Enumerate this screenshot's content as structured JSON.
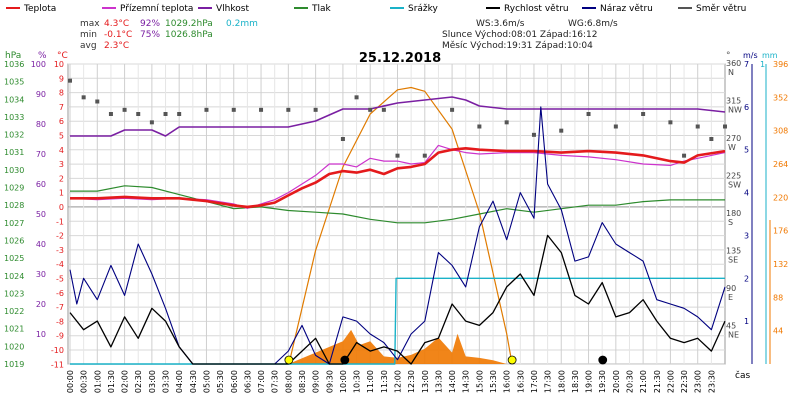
{
  "legend": [
    {
      "key": "temp",
      "label": "Teplota",
      "color": "#e41a1c"
    },
    {
      "key": "feels",
      "label": "Přízemní teplota",
      "color": "#cc33cc"
    },
    {
      "key": "hum",
      "label": "Vlhkost",
      "color": "#7a1fa2"
    },
    {
      "key": "press",
      "label": "Tlak",
      "color": "#2e8b2e"
    },
    {
      "key": "rain",
      "label": "Srážky",
      "color": "#1ab2c8"
    },
    {
      "key": "wind",
      "label": "Rychlost větru",
      "color": "#000000"
    },
    {
      "key": "gust",
      "label": "Náraz větru",
      "color": "#000080"
    },
    {
      "key": "dir",
      "label": "Směr větru",
      "color": "#555555"
    }
  ],
  "stats": {
    "max_label": "max",
    "max_temp": "4.3°C",
    "max_hum": "92%",
    "max_press": "1029.2hPa",
    "max_rain": "0.2mm",
    "min_label": "min",
    "min_temp": "-0.1°C",
    "min_hum": "75%",
    "min_press": "1026.8hPa",
    "avg_label": "avg",
    "avg_temp": "2.3°C",
    "ws": "WS:3.6m/s",
    "wg": "WG:6.8m/s",
    "sun": "Slunce Východ:08:01  Západ:16:12",
    "moon": "Měsíc  Východ:19:31  Západ:10:04"
  },
  "title": "25.12.2018",
  "colors": {
    "temp": "#e41a1c",
    "feels": "#cc33cc",
    "hum": "#7a1fa2",
    "press": "#2e8b2e",
    "rain": "#1ab2c8",
    "wind": "#000000",
    "gust": "#000080",
    "dir": "#555555",
    "sun": "#e07b00",
    "solar": "#f07800",
    "grid": "#d8d8d8"
  },
  "axes": {
    "hpa_unit": "hPa",
    "pct_unit": "%",
    "temp_unit": "°C",
    "deg_unit": "°",
    "ms_unit": "m/s",
    "mm_unit": "mm",
    "x_label": "čas",
    "hpa_ticks": [
      "1036",
      "1035",
      "1034",
      "1033",
      "1032",
      "1031",
      "1030",
      "1029",
      "1028",
      "1027",
      "1026",
      "1025",
      "1024",
      "1023",
      "1022",
      "1021",
      "1020",
      "1019"
    ],
    "pct_ticks": [
      "100",
      "90",
      "80",
      "70",
      "60",
      "50",
      "40",
      "30",
      "20",
      "10"
    ],
    "temp_ticks": [
      "10",
      "9",
      "8",
      "7",
      "6",
      "5",
      "4",
      "3",
      "2",
      "1",
      "0",
      "-1",
      "-2",
      "-3",
      "-4",
      "-5",
      "-6",
      "-7",
      "-8",
      "-9",
      "-10",
      "-11"
    ],
    "dir_ticks": [
      {
        "deg": "360",
        "dir": "N"
      },
      {
        "deg": "315",
        "dir": "NW"
      },
      {
        "deg": "270",
        "dir": "W"
      },
      {
        "deg": "225",
        "dir": "SW"
      },
      {
        "deg": "180",
        "dir": "S"
      },
      {
        "deg": "135",
        "dir": "SE"
      },
      {
        "deg": "90",
        "dir": "E"
      },
      {
        "deg": "45",
        "dir": "NE"
      }
    ],
    "ms_ticks": [
      "7",
      "6",
      "5",
      "4",
      "3",
      "2",
      "1"
    ],
    "mm_ticks": [
      "1"
    ],
    "solar_ticks": [
      "396",
      "352",
      "308",
      "264",
      "220",
      "176",
      "132",
      "88",
      "44"
    ],
    "time_ticks": [
      "00:00",
      "00:30",
      "01:00",
      "01:30",
      "02:00",
      "02:30",
      "03:00",
      "03:30",
      "04:00",
      "04:30",
      "05:00",
      "05:30",
      "06:00",
      "06:30",
      "07:00",
      "07:30",
      "08:00",
      "08:30",
      "09:00",
      "09:30",
      "10:00",
      "10:30",
      "11:00",
      "11:30",
      "12:00",
      "12:30",
      "13:00",
      "13:30",
      "14:00",
      "14:30",
      "15:00",
      "15:30",
      "16:00",
      "16:30",
      "17:00",
      "17:30",
      "18:00",
      "18:30",
      "19:00",
      "19:30",
      "20:00",
      "20:30",
      "21:00",
      "21:30",
      "22:00",
      "22:30",
      "23:00",
      "23:30"
    ]
  },
  "chart_data": {
    "type": "line",
    "title": "25.12.2018",
    "x_unit": "hours",
    "xlim": [
      0,
      24
    ],
    "ylim_temp": [
      -11,
      10
    ],
    "ylim_hum": [
      0,
      100
    ],
    "ylim_press": [
      1019,
      1036
    ],
    "ylim_wind": [
      0,
      7
    ],
    "ylim_dir": [
      0,
      360
    ],
    "ylim_solar": [
      0,
      396
    ],
    "series": [
      {
        "name": "Teplota",
        "key": "temp",
        "axis": "temp",
        "x": [
          0,
          1,
          2,
          3,
          4,
          5,
          6,
          6.5,
          7,
          7.5,
          8,
          8.5,
          9,
          9.5,
          10,
          10.5,
          11,
          11.5,
          12,
          12.5,
          13,
          13.5,
          14,
          14.5,
          15,
          16,
          17,
          18,
          19,
          20,
          21,
          22,
          22.5,
          23,
          24
        ],
        "y": [
          0.6,
          0.6,
          0.7,
          0.6,
          0.6,
          0.4,
          0.1,
          0,
          0.1,
          0.3,
          0.8,
          1.3,
          1.7,
          2.3,
          2.5,
          2.4,
          2.6,
          2.3,
          2.7,
          2.8,
          3.0,
          3.8,
          4.0,
          4.1,
          4.0,
          3.9,
          3.9,
          3.8,
          3.9,
          3.8,
          3.6,
          3.2,
          3.1,
          3.6,
          3.9
        ]
      },
      {
        "name": "Přízemní teplota",
        "key": "feels",
        "axis": "temp",
        "x": [
          0,
          1,
          2,
          3,
          4,
          5,
          6,
          6.5,
          7,
          7.5,
          8,
          8.5,
          9,
          9.5,
          10,
          10.5,
          11,
          11.5,
          12,
          12.5,
          13,
          13.5,
          14,
          14.5,
          15,
          16,
          17,
          18,
          19,
          20,
          21,
          22,
          22.5,
          23,
          24
        ],
        "y": [
          0.6,
          0.5,
          0.6,
          0.5,
          0.6,
          0.5,
          0.2,
          -0.1,
          0.2,
          0.5,
          1.0,
          1.6,
          2.2,
          3.0,
          3.0,
          2.8,
          3.4,
          3.2,
          3.2,
          3.0,
          3.1,
          4.3,
          4.0,
          3.8,
          3.7,
          3.8,
          3.8,
          3.6,
          3.5,
          3.3,
          3.0,
          2.9,
          3.2,
          3.4,
          3.8
        ]
      },
      {
        "name": "Vlhkost",
        "key": "hum",
        "axis": "hum",
        "x": [
          0,
          1,
          1.5,
          2,
          3,
          3.5,
          4,
          5,
          6,
          7,
          8,
          9,
          10,
          11,
          12,
          13,
          14,
          14.5,
          15,
          16,
          17,
          18,
          19,
          20,
          21,
          22,
          23,
          24
        ],
        "y": [
          76,
          76,
          76,
          78,
          78,
          76,
          79,
          79,
          79,
          79,
          79,
          81,
          85,
          85,
          87,
          88,
          89,
          88,
          86,
          85,
          85,
          85,
          85,
          85,
          85,
          85,
          85,
          84
        ]
      },
      {
        "name": "Tlak",
        "key": "press",
        "axis": "press",
        "x": [
          0,
          1,
          2,
          3,
          4,
          5,
          6,
          7,
          8,
          9,
          10,
          11,
          12,
          13,
          14,
          15,
          16,
          17,
          18,
          19,
          20,
          21,
          22,
          23,
          24
        ],
        "y": [
          1028.8,
          1028.8,
          1029.1,
          1029.0,
          1028.6,
          1028.2,
          1027.8,
          1027.9,
          1027.7,
          1027.6,
          1027.5,
          1027.2,
          1027.0,
          1027.0,
          1027.2,
          1027.5,
          1027.8,
          1027.6,
          1027.8,
          1028.0,
          1028.0,
          1028.2,
          1028.3,
          1028.3,
          1028.3
        ]
      },
      {
        "name": "Srážky",
        "key": "rain",
        "axis": "mm",
        "x": [
          0,
          11.9,
          11.95,
          24
        ],
        "y": [
          0,
          0,
          0.2,
          0.2
        ]
      },
      {
        "name": "Rychlost větru",
        "key": "wind",
        "axis": "wind",
        "x": [
          0,
          0.5,
          1,
          1.5,
          2,
          2.5,
          3,
          3.5,
          4,
          4.5,
          5,
          5.5,
          6,
          6.5,
          7,
          7.5,
          8,
          8.5,
          9,
          9.5,
          10,
          10.5,
          11,
          11.5,
          12,
          12.5,
          13,
          13.5,
          14,
          14.5,
          15,
          15.5,
          16,
          16.5,
          17,
          17.5,
          18,
          18.5,
          19,
          19.5,
          20,
          20.5,
          21,
          21.5,
          22,
          22.5,
          23,
          23.5,
          24
        ],
        "y": [
          1.2,
          0.8,
          1.0,
          0.4,
          1.1,
          0.6,
          1.3,
          1.0,
          0.4,
          0.0,
          0.0,
          0.0,
          0.0,
          0.0,
          0.0,
          0.0,
          0.0,
          0.3,
          0.6,
          0.0,
          0.0,
          0.5,
          0.3,
          0.4,
          0.3,
          0.0,
          0.5,
          0.6,
          1.4,
          1.0,
          0.9,
          1.2,
          1.8,
          2.1,
          1.6,
          3.0,
          2.6,
          1.6,
          1.4,
          1.9,
          1.1,
          1.2,
          1.5,
          1.0,
          0.6,
          0.5,
          0.6,
          0.3,
          1.0
        ]
      },
      {
        "name": "Náraz větru",
        "key": "gust",
        "axis": "wind",
        "x": [
          0,
          0.25,
          0.5,
          1,
          1.5,
          2,
          2.5,
          3,
          3.5,
          4,
          4.5,
          5,
          5.5,
          6,
          6.5,
          7,
          7.5,
          8,
          8.5,
          9,
          9.5,
          10,
          10.5,
          11,
          11.5,
          12,
          12.5,
          13,
          13.5,
          14,
          14.5,
          15,
          15.5,
          16,
          16.5,
          17,
          17.25,
          17.5,
          18,
          18.5,
          19,
          19.5,
          20,
          20.5,
          21,
          21.5,
          22,
          22.5,
          23,
          23.5,
          24
        ],
        "y": [
          2.2,
          1.4,
          2.0,
          1.5,
          2.3,
          1.6,
          2.8,
          2.1,
          1.3,
          0.4,
          0.0,
          0.0,
          0.0,
          0.0,
          0.0,
          0.0,
          0.0,
          0.3,
          0.9,
          0.2,
          0.0,
          1.1,
          1.0,
          0.7,
          0.5,
          0.1,
          0.7,
          1.0,
          2.6,
          2.3,
          1.8,
          3.2,
          3.8,
          2.9,
          4.0,
          3.4,
          6.0,
          4.2,
          3.6,
          2.4,
          2.5,
          3.3,
          2.8,
          2.6,
          2.4,
          1.5,
          1.4,
          1.3,
          1.1,
          0.8,
          1.8
        ]
      },
      {
        "name": "Směr větru",
        "key": "dir",
        "axis": "dir",
        "x": [
          0,
          0.5,
          1,
          1.5,
          2,
          2.5,
          3,
          3.5,
          4,
          5,
          6,
          7,
          8,
          9,
          10,
          10.5,
          11,
          11.5,
          12,
          13,
          14,
          15,
          16,
          17,
          18,
          19,
          20,
          21,
          22,
          22.5,
          23,
          23.5,
          24
        ],
        "y": [
          340,
          320,
          315,
          300,
          305,
          300,
          290,
          300,
          300,
          305,
          305,
          305,
          305,
          305,
          270,
          320,
          305,
          305,
          250,
          250,
          305,
          285,
          290,
          275,
          280,
          300,
          285,
          300,
          290,
          250,
          285,
          270,
          285
        ]
      },
      {
        "name": "Slunce",
        "key": "sun",
        "axis": "solar",
        "x": [
          8.02,
          9,
          10,
          11,
          12,
          12.5,
          13,
          14,
          15,
          16,
          16.2
        ],
        "y": [
          0,
          150,
          260,
          330,
          362,
          365,
          360,
          310,
          200,
          40,
          0
        ]
      },
      {
        "name": "Solární záření",
        "key": "solar",
        "axis": "solar",
        "x": [
          8,
          9,
          10,
          10.3,
          10.6,
          11,
          11.5,
          12,
          12.5,
          13,
          13.5,
          14,
          14.2,
          14.5,
          15,
          15.5,
          16
        ],
        "y": [
          0,
          15,
          30,
          45,
          25,
          30,
          10,
          8,
          12,
          20,
          35,
          15,
          40,
          10,
          8,
          5,
          0
        ]
      }
    ],
    "events": [
      {
        "name": "Východ slunce",
        "x": 8.02,
        "color": "#ffff00"
      },
      {
        "name": "Západ slunce",
        "x": 16.2,
        "color": "#ffff00"
      },
      {
        "name": "Západ měsíce",
        "x": 10.07,
        "color": "#000000"
      },
      {
        "name": "Východ měsíce",
        "x": 19.52,
        "color": "#000000"
      }
    ]
  }
}
